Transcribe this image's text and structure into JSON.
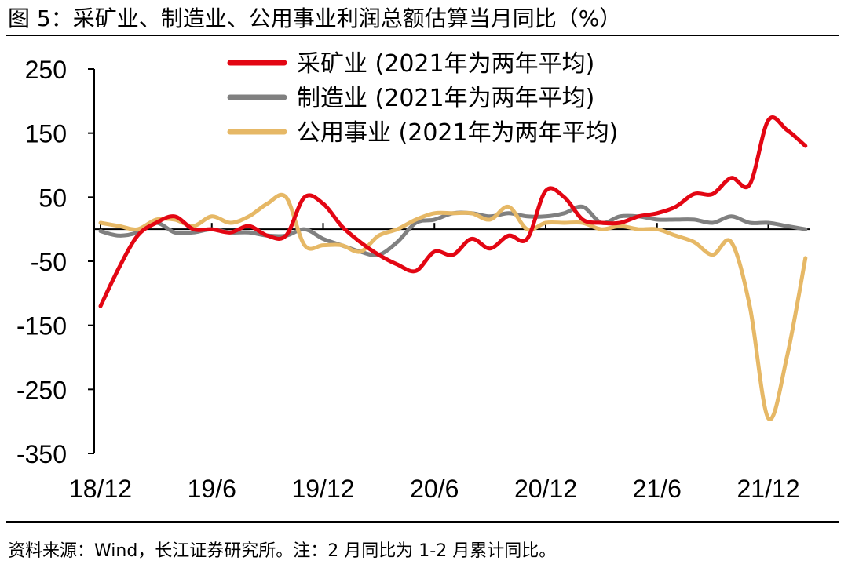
{
  "figure": {
    "title": "图 5：采矿业、制造业、公用事业利润总额估算当月同比（%）",
    "source": "资料来源：Wind，长江证券研究所。注：2 月同比为 1-2 月累计同比。"
  },
  "colors": {
    "mining": "#e30613",
    "manufacturing": "#808080",
    "utilities": "#e6b866",
    "axis": "#000000"
  },
  "chart_data": {
    "type": "line",
    "title": "采矿业、制造业、公用事业利润总额估算当月同比（%）",
    "xlabel": "",
    "ylabel": "%",
    "ylim": [
      -350,
      250
    ],
    "yticks": [
      "250",
      "150",
      "50",
      "-50",
      "-150",
      "-250",
      "-350"
    ],
    "ytick_values": [
      250,
      150,
      50,
      -50,
      -150,
      -250,
      -350
    ],
    "x": [
      "18/12",
      "19/1",
      "19/2",
      "19/3",
      "19/4",
      "19/5",
      "19/6",
      "19/7",
      "19/8",
      "19/9",
      "19/10",
      "19/11",
      "19/12",
      "20/1",
      "20/2",
      "20/3",
      "20/4",
      "20/5",
      "20/6",
      "20/7",
      "20/8",
      "20/9",
      "20/10",
      "20/11",
      "20/12",
      "21/1",
      "21/2",
      "21/3",
      "21/4",
      "21/5",
      "21/6",
      "21/7",
      "21/8",
      "21/9",
      "21/10",
      "21/11",
      "21/12",
      "22/1",
      "22/2"
    ],
    "xtick_labels": [
      "18/12",
      "19/6",
      "19/12",
      "20/6",
      "20/12",
      "21/6",
      "21/12"
    ],
    "xtick_indices": [
      0,
      6,
      12,
      18,
      24,
      30,
      36
    ],
    "legend_position": "top",
    "series": [
      {
        "name": "采矿业 (2021年为两年平均)",
        "color_key": "mining",
        "values": [
          -120,
          -60,
          -10,
          10,
          20,
          0,
          0,
          -5,
          5,
          -10,
          -10,
          50,
          40,
          5,
          -20,
          -40,
          -55,
          -65,
          -35,
          -40,
          -15,
          -30,
          -10,
          -15,
          60,
          50,
          15,
          10,
          10,
          20,
          25,
          35,
          55,
          55,
          80,
          70,
          170,
          155,
          130
        ]
      },
      {
        "name": "制造业 (2021年为两年平均)",
        "color_key": "manufacturing",
        "values": [
          -3,
          -10,
          -5,
          10,
          -5,
          -5,
          0,
          -5,
          -5,
          -10,
          -10,
          0,
          -15,
          -25,
          -35,
          -40,
          -20,
          10,
          15,
          25,
          25,
          20,
          25,
          20,
          20,
          25,
          35,
          10,
          20,
          20,
          15,
          15,
          15,
          10,
          20,
          10,
          10,
          5,
          0
        ]
      },
      {
        "name": "公用事业 (2021年为两年平均)",
        "color_key": "utilities",
        "values": [
          10,
          5,
          0,
          15,
          15,
          5,
          20,
          10,
          20,
          40,
          50,
          -25,
          -25,
          -25,
          -35,
          -10,
          0,
          15,
          25,
          25,
          25,
          15,
          35,
          0,
          10,
          10,
          10,
          0,
          5,
          0,
          0,
          -10,
          -20,
          -40,
          -20,
          -120,
          -295,
          -200,
          -45
        ]
      }
    ]
  }
}
